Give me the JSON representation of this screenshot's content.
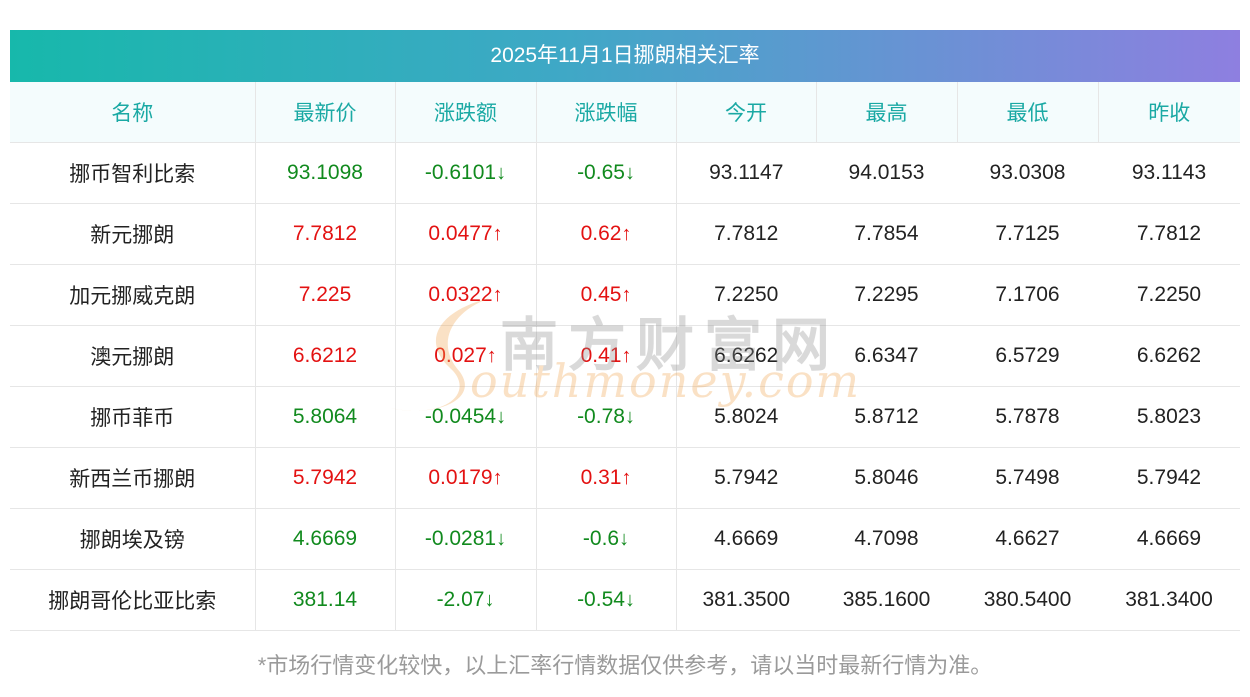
{
  "title": "2025年11月1日挪朗相关汇率",
  "columns": [
    "名称",
    "最新价",
    "涨跌额",
    "涨跌幅",
    "今开",
    "最高",
    "最低",
    "昨收"
  ],
  "rows": [
    {
      "name": "挪币智利比索",
      "price": "93.1098",
      "change": "-0.6101",
      "change_arrow": "↓",
      "pct": "-0.65",
      "pct_arrow": "↓",
      "open": "93.1147",
      "high": "94.0153",
      "low": "93.0308",
      "prev": "93.1143",
      "trend": "down"
    },
    {
      "name": "新元挪朗",
      "price": "7.7812",
      "change": "0.0477",
      "change_arrow": "↑",
      "pct": "0.62",
      "pct_arrow": "↑",
      "open": "7.7812",
      "high": "7.7854",
      "low": "7.7125",
      "prev": "7.7812",
      "trend": "up"
    },
    {
      "name": "加元挪威克朗",
      "price": "7.225",
      "change": "0.0322",
      "change_arrow": "↑",
      "pct": "0.45",
      "pct_arrow": "↑",
      "open": "7.2250",
      "high": "7.2295",
      "low": "7.1706",
      "prev": "7.2250",
      "trend": "up"
    },
    {
      "name": "澳元挪朗",
      "price": "6.6212",
      "change": "0.027",
      "change_arrow": "↑",
      "pct": "0.41",
      "pct_arrow": "↑",
      "open": "6.6262",
      "high": "6.6347",
      "low": "6.5729",
      "prev": "6.6262",
      "trend": "up"
    },
    {
      "name": "挪币菲币",
      "price": "5.8064",
      "change": "-0.0454",
      "change_arrow": "↓",
      "pct": "-0.78",
      "pct_arrow": "↓",
      "open": "5.8024",
      "high": "5.8712",
      "low": "5.7878",
      "prev": "5.8023",
      "trend": "down"
    },
    {
      "name": "新西兰币挪朗",
      "price": "5.7942",
      "change": "0.0179",
      "change_arrow": "↑",
      "pct": "0.31",
      "pct_arrow": "↑",
      "open": "5.7942",
      "high": "5.8046",
      "low": "5.7498",
      "prev": "5.7942",
      "trend": "up"
    },
    {
      "name": "挪朗埃及镑",
      "price": "4.6669",
      "change": "-0.0281",
      "change_arrow": "↓",
      "pct": "-0.6",
      "pct_arrow": "↓",
      "open": "4.6669",
      "high": "4.7098",
      "low": "4.6627",
      "prev": "4.6669",
      "trend": "down"
    },
    {
      "name": "挪朗哥伦比亚比索",
      "price": "381.14",
      "change": "-2.07",
      "change_arrow": "↓",
      "pct": "-0.54",
      "pct_arrow": "↓",
      "open": "381.3500",
      "high": "385.1600",
      "low": "380.5400",
      "prev": "381.3400",
      "trend": "down"
    }
  ],
  "watermark": {
    "cn": "南方财富网",
    "en": "outhmoney.com"
  },
  "footer_note": "*市场行情变化较快，以上汇率行情数据仅供参考，请以当时最新行情为准。",
  "colors": {
    "up": "#e31212",
    "down": "#118a1e",
    "header_text": "#1aa9a4"
  }
}
